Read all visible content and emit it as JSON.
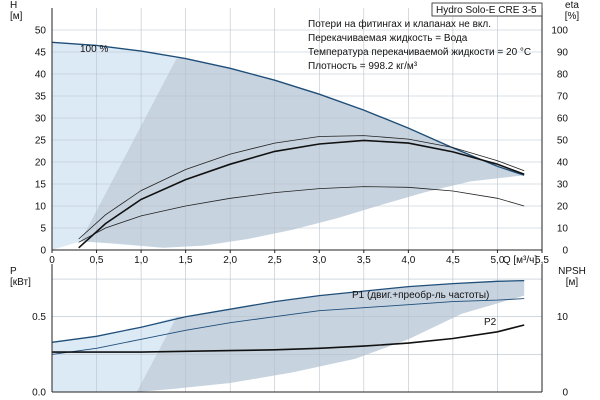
{
  "header": {
    "title": "Hydro Solo-E CRE 3-5"
  },
  "notes": [
    "Потери на фитингах и клапанах не вкл.",
    "Перекачиваемая жидкость = Вода",
    "Температура перекачиваемой жидкости = 20 °C",
    "Плотность = 998.2 кг/м³"
  ],
  "chart_data": [
    {
      "type": "line",
      "title": "Hydro Solo-E CRE 3-5",
      "xlabel": "Q [м³/ч]",
      "ylabel_left": "H\n[м]",
      "ylabel_right": "eta\n[%]",
      "xlim": [
        0,
        5.5
      ],
      "ylim_left": [
        0,
        55
      ],
      "ylim_right": [
        0,
        110
      ],
      "x_ticks": [
        "0",
        "0,5",
        "1,0",
        "1,5",
        "2,0",
        "2,5",
        "3,0",
        "3,5",
        "4,0",
        "4,5",
        "5,0",
        "5,5"
      ],
      "y_ticks_left": [
        "0",
        "5",
        "10",
        "15",
        "20",
        "25",
        "30",
        "35",
        "40",
        "45",
        "50"
      ],
      "y_ticks_right": [
        "0",
        "10",
        "20",
        "30",
        "40",
        "50",
        "60",
        "70",
        "80",
        "90",
        "100"
      ],
      "grid": true,
      "annotations": [
        "100 %"
      ],
      "operating_range": {
        "upper": [
          [
            0,
            47.2
          ],
          [
            0.5,
            46.5
          ],
          [
            1.0,
            45.2
          ],
          [
            1.5,
            43.5
          ],
          [
            2.0,
            41.3
          ],
          [
            2.5,
            38.6
          ],
          [
            3.0,
            35.4
          ],
          [
            3.5,
            31.8
          ],
          [
            4.0,
            27.7
          ],
          [
            4.5,
            23.2
          ],
          [
            5.0,
            19.0
          ],
          [
            5.3,
            17.0
          ]
        ],
        "lower": [
          [
            0.32,
            2
          ],
          [
            0.7,
            1.5
          ],
          [
            1.25,
            0.5
          ],
          [
            1.7,
            1.0
          ],
          [
            2.2,
            2.5
          ],
          [
            2.7,
            4.6
          ],
          [
            3.2,
            7.2
          ],
          [
            3.7,
            10.3
          ],
          [
            4.2,
            13.2
          ],
          [
            4.7,
            15.6
          ],
          [
            5.3,
            17.0
          ]
        ]
      },
      "series": [
        {
          "name": "100 %",
          "values": [
            [
              0,
              47.2
            ],
            [
              0.5,
              46.5
            ],
            [
              1.0,
              45.2
            ],
            [
              1.5,
              43.5
            ],
            [
              2.0,
              41.3
            ],
            [
              2.5,
              38.6
            ],
            [
              3.0,
              35.4
            ],
            [
              3.5,
              31.8
            ],
            [
              4.0,
              27.7
            ],
            [
              4.5,
              23.2
            ],
            [
              5.0,
              19.0
            ],
            [
              5.3,
              17.0
            ]
          ]
        },
        {
          "values": [
            [
              0.3,
              2.5
            ],
            [
              0.6,
              8.0
            ],
            [
              1.0,
              13.5
            ],
            [
              1.5,
              18.3
            ],
            [
              2.0,
              21.8
            ],
            [
              2.5,
              24.3
            ],
            [
              3.0,
              25.8
            ],
            [
              3.5,
              26.0
            ],
            [
              4.0,
              25.2
            ],
            [
              4.5,
              23.3
            ],
            [
              5.0,
              20.3
            ],
            [
              5.3,
              18.0
            ]
          ]
        },
        {
          "values": [
            [
              0.3,
              3.5
            ],
            [
              0.6,
              10.0
            ],
            [
              1.0,
              15.5
            ],
            [
              1.5,
              20.0
            ],
            [
              2.0,
              23.5
            ],
            [
              2.5,
              26.1
            ],
            [
              3.0,
              27.9
            ],
            [
              3.5,
              28.8
            ],
            [
              4.0,
              28.5
            ],
            [
              4.5,
              26.8
            ],
            [
              5.0,
              23.5
            ],
            [
              5.3,
              20.0
            ]
          ]
        },
        {
          "values": [
            [
              0.3,
              0.5
            ],
            [
              0.6,
              6.0
            ],
            [
              1.0,
              11.5
            ],
            [
              1.5,
              16.0
            ],
            [
              2.0,
              19.5
            ],
            [
              2.5,
              22.4
            ],
            [
              3.0,
              24.1
            ],
            [
              3.5,
              24.9
            ],
            [
              4.0,
              24.3
            ],
            [
              4.5,
              22.3
            ],
            [
              5.0,
              19.5
            ],
            [
              5.3,
              17.2
            ]
          ]
        }
      ]
    },
    {
      "type": "line",
      "ylabel_left": "P\n[кВт]",
      "ylabel_right": "NPSH\n[м]",
      "xlim": [
        0,
        5.5
      ],
      "ylim_left": [
        0,
        0.85
      ],
      "ylim_right": [
        0,
        17
      ],
      "y_ticks_left": [
        "0.0",
        "0.5"
      ],
      "y_ticks_right": [
        "0",
        "10"
      ],
      "grid": true,
      "operating_range": {
        "upper": [
          [
            0,
            0.33
          ],
          [
            0.5,
            0.37
          ],
          [
            1.0,
            0.43
          ],
          [
            1.5,
            0.5
          ],
          [
            2.0,
            0.55
          ],
          [
            2.5,
            0.6
          ],
          [
            3.0,
            0.64
          ],
          [
            3.5,
            0.67
          ],
          [
            4.0,
            0.7
          ],
          [
            4.5,
            0.72
          ],
          [
            5.0,
            0.74
          ],
          [
            5.3,
            0.74
          ]
        ],
        "lower": [
          [
            0.95,
            0.0
          ],
          [
            1.35,
            0.02
          ],
          [
            2.0,
            0.06
          ],
          [
            2.7,
            0.13
          ],
          [
            3.4,
            0.22
          ],
          [
            4.0,
            0.35
          ],
          [
            4.6,
            0.52
          ],
          [
            5.3,
            0.64
          ]
        ]
      },
      "series": [
        {
          "name": "P1 (двиг.+преобр-ль частоты)",
          "values": [
            [
              0,
              0.33
            ],
            [
              0.5,
              0.37
            ],
            [
              1.0,
              0.43
            ],
            [
              1.5,
              0.5
            ],
            [
              2.0,
              0.55
            ],
            [
              2.5,
              0.6
            ],
            [
              3.0,
              0.64
            ],
            [
              3.5,
              0.67
            ],
            [
              4.0,
              0.7
            ],
            [
              4.5,
              0.72
            ],
            [
              5.0,
              0.735
            ],
            [
              5.3,
              0.74
            ]
          ]
        },
        {
          "name": "P2",
          "values": [
            [
              0,
              0.25
            ],
            [
              0.5,
              0.29
            ],
            [
              1.0,
              0.35
            ],
            [
              1.5,
              0.41
            ],
            [
              2.0,
              0.46
            ],
            [
              2.5,
              0.5
            ],
            [
              3.0,
              0.54
            ],
            [
              3.5,
              0.56
            ],
            [
              4.0,
              0.58
            ],
            [
              4.5,
              0.6
            ],
            [
              5.0,
              0.61
            ],
            [
              5.3,
              0.62
            ]
          ]
        },
        {
          "values": [
            [
              0,
              5.3
            ],
            [
              0.5,
              5.3
            ],
            [
              1.0,
              5.3
            ],
            [
              1.5,
              5.4
            ],
            [
              2.0,
              5.5
            ],
            [
              2.5,
              5.6
            ],
            [
              3.0,
              5.8
            ],
            [
              3.5,
              6.1
            ],
            [
              4.0,
              6.5
            ],
            [
              4.5,
              7.1
            ],
            [
              5.0,
              8.0
            ],
            [
              5.3,
              8.9
            ]
          ]
        }
      ]
    }
  ]
}
